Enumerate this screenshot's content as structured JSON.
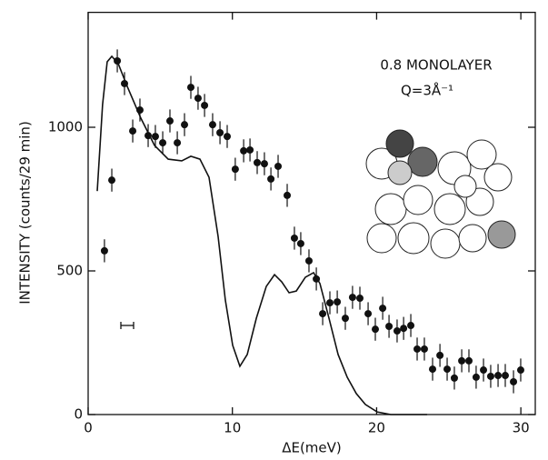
{
  "chart_data": {
    "type": "scatter",
    "xlabel": "ΔE(meV)",
    "ylabel": "INTENSITY (counts/29 min)",
    "annotations": [
      "0.8 MONOLAYER",
      "Q=3Å⁻¹"
    ],
    "xlim": [
      0,
      31
    ],
    "ylim": [
      0,
      1400
    ],
    "xticks": [
      0,
      10,
      20,
      30
    ],
    "yticks": [
      0,
      500,
      1000
    ],
    "color": "#111",
    "yerr": 40,
    "x": [
      1.13,
      1.64,
      2.02,
      2.52,
      3.09,
      3.59,
      4.16,
      4.66,
      5.17,
      5.67,
      6.18,
      6.68,
      7.12,
      7.62,
      8.07,
      8.63,
      9.14,
      9.64,
      10.2,
      10.78,
      11.22,
      11.72,
      12.22,
      12.67,
      13.17,
      13.8,
      14.3,
      14.74,
      15.31,
      15.82,
      16.26,
      16.76,
      17.27,
      17.83,
      18.33,
      18.84,
      19.41,
      19.91,
      20.42,
      20.86,
      21.42,
      21.87,
      22.37,
      22.81,
      23.31,
      23.88,
      24.39,
      24.89,
      25.39,
      25.9,
      26.4,
      26.9,
      27.41,
      27.91,
      28.42,
      28.92,
      29.49,
      29.99
    ],
    "y": [
      570,
      816,
      1231,
      1152,
      987,
      1060,
      971,
      968,
      946,
      1022,
      946,
      1009,
      1139,
      1101,
      1076,
      1009,
      981,
      968,
      854,
      918,
      921,
      877,
      873,
      820,
      864,
      763,
      614,
      595,
      535,
      472,
      351,
      389,
      392,
      335,
      408,
      405,
      351,
      297,
      370,
      307,
      291,
      300,
      310,
      228,
      228,
      158,
      206,
      158,
      127,
      187,
      187,
      130,
      155,
      133,
      136,
      136,
      114,
      155
    ],
    "curve": {
      "x": [
        0.63,
        1.0,
        1.32,
        1.64,
        2.08,
        2.71,
        3.65,
        4.6,
        5.55,
        6.49,
        7.12,
        7.75,
        8.38,
        9.01,
        9.51,
        10.02,
        10.52,
        11.03,
        11.66,
        12.35,
        12.92,
        13.42,
        13.93,
        14.43,
        15.06,
        15.63,
        16.07,
        16.7,
        17.33,
        17.96,
        18.59,
        19.22,
        20.04,
        20.98,
        23.5
      ],
      "y": [
        778,
        1079,
        1228,
        1247,
        1222,
        1142,
        1032,
        937,
        889,
        883,
        899,
        889,
        826,
        620,
        399,
        241,
        168,
        209,
        335,
        446,
        487,
        462,
        424,
        430,
        478,
        494,
        456,
        335,
        209,
        130,
        73,
        35,
        9,
        0,
        0
      ]
    }
  }
}
